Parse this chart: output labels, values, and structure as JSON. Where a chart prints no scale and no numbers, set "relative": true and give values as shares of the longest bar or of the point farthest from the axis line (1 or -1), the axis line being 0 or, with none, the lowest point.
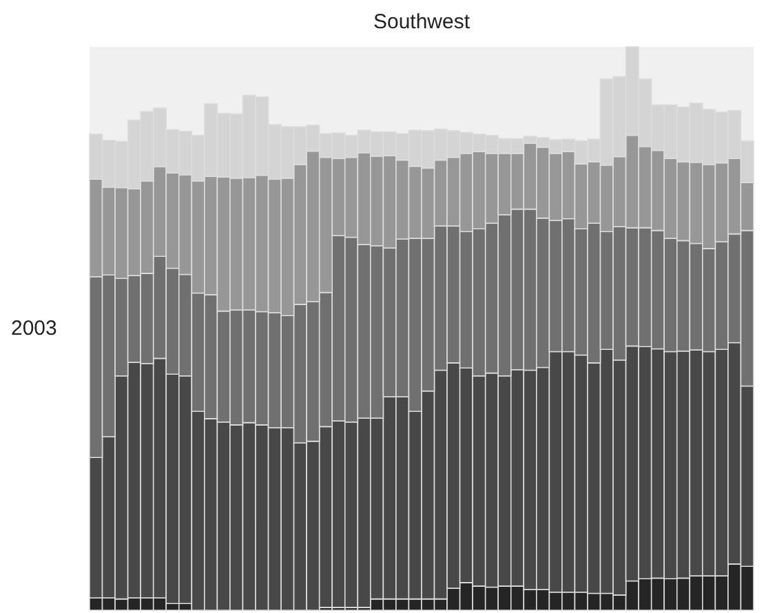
{
  "chart_data": {
    "type": "bar",
    "title": "Southwest",
    "ylabel": "2003",
    "stacked": true,
    "relative": true,
    "legend": false,
    "categories": [
      null,
      null,
      null,
      null,
      null,
      null,
      null,
      null,
      null,
      null,
      null,
      null,
      null,
      null,
      null,
      null,
      null,
      null,
      null,
      null,
      null,
      null,
      null,
      null,
      null,
      null,
      null,
      null,
      null,
      null,
      null,
      null,
      null,
      null,
      null,
      null,
      null,
      null,
      null,
      null,
      null,
      null,
      null,
      null,
      null,
      null,
      null,
      null,
      null,
      null,
      null,
      null
    ],
    "series": [
      {
        "color": "#252525",
        "values": [
          0.022,
          0.022,
          0.02,
          0.022,
          0.022,
          0.022,
          0.012,
          0.012,
          0,
          0,
          0,
          0,
          0,
          0,
          0,
          0,
          0,
          0,
          0.005,
          0.005,
          0.005,
          0.005,
          0.02,
          0.02,
          0.02,
          0.02,
          0.02,
          0.02,
          0.039,
          0.049,
          0.043,
          0.041,
          0.043,
          0.043,
          0.037,
          0.037,
          0.032,
          0.032,
          0.032,
          0.03,
          0.03,
          0.027,
          0.052,
          0.056,
          0.057,
          0.056,
          0.057,
          0.061,
          0.061,
          0.061,
          0.082,
          0.078
        ]
      },
      {
        "color": "#484848",
        "values": [
          0.249,
          0.286,
          0.396,
          0.418,
          0.416,
          0.425,
          0.407,
          0.404,
          0.353,
          0.34,
          0.334,
          0.329,
          0.333,
          0.329,
          0.324,
          0.324,
          0.297,
          0.3,
          0.321,
          0.331,
          0.329,
          0.336,
          0.321,
          0.359,
          0.359,
          0.333,
          0.369,
          0.406,
          0.4,
          0.381,
          0.373,
          0.38,
          0.373,
          0.384,
          0.389,
          0.394,
          0.427,
          0.427,
          0.421,
          0.409,
          0.433,
          0.417,
          0.417,
          0.412,
          0.407,
          0.403,
          0.403,
          0.401,
          0.398,
          0.402,
          0.393,
          0.32
        ]
      },
      {
        "color": "#707070",
        "values": [
          0.321,
          0.287,
          0.173,
          0.154,
          0.16,
          0.181,
          0.188,
          0.18,
          0.21,
          0.22,
          0.197,
          0.204,
          0.2,
          0.201,
          0.204,
          0.199,
          0.246,
          0.248,
          0.238,
          0.329,
          0.328,
          0.308,
          0.306,
          0.264,
          0.28,
          0.307,
          0.271,
          0.256,
          0.243,
          0.242,
          0.261,
          0.266,
          0.286,
          0.285,
          0.286,
          0.265,
          0.233,
          0.236,
          0.224,
          0.248,
          0.209,
          0.237,
          0.21,
          0.211,
          0.21,
          0.201,
          0.196,
          0.189,
          0.183,
          0.191,
          0.193,
          0.276
        ]
      },
      {
        "color": "#979797",
        "values": [
          0.173,
          0.156,
          0.161,
          0.154,
          0.164,
          0.159,
          0.169,
          0.177,
          0.199,
          0.21,
          0.238,
          0.234,
          0.235,
          0.242,
          0.237,
          0.244,
          0.248,
          0.267,
          0.24,
          0.137,
          0.142,
          0.163,
          0.159,
          0.164,
          0.14,
          0.128,
          0.125,
          0.117,
          0.122,
          0.139,
          0.137,
          0.124,
          0.109,
          0.099,
          0.117,
          0.126,
          0.119,
          0.119,
          0.115,
          0.109,
          0.118,
          0.124,
          0.164,
          0.144,
          0.142,
          0.142,
          0.14,
          0.144,
          0.149,
          0.14,
          0.134,
          0.085
        ]
      },
      {
        "color": "#d4d4d4",
        "values": [
          0.08,
          0.083,
          0.082,
          0.122,
          0.123,
          0.104,
          0.077,
          0.077,
          0.081,
          0.129,
          0.113,
          0.114,
          0.146,
          0.139,
          0.097,
          0.091,
          0.067,
          0.046,
          0.042,
          0.045,
          0.039,
          0.04,
          0.043,
          0.042,
          0.047,
          0.064,
          0.066,
          0.055,
          0.047,
          0.037,
          0.031,
          0.032,
          0.026,
          0.026,
          0.012,
          0.017,
          0.024,
          0.022,
          0.041,
          0.04,
          0.153,
          0.142,
          0.157,
          0.12,
          0.081,
          0.095,
          0.097,
          0.105,
          0.098,
          0.09,
          0.085,
          0.074
        ]
      }
    ]
  }
}
